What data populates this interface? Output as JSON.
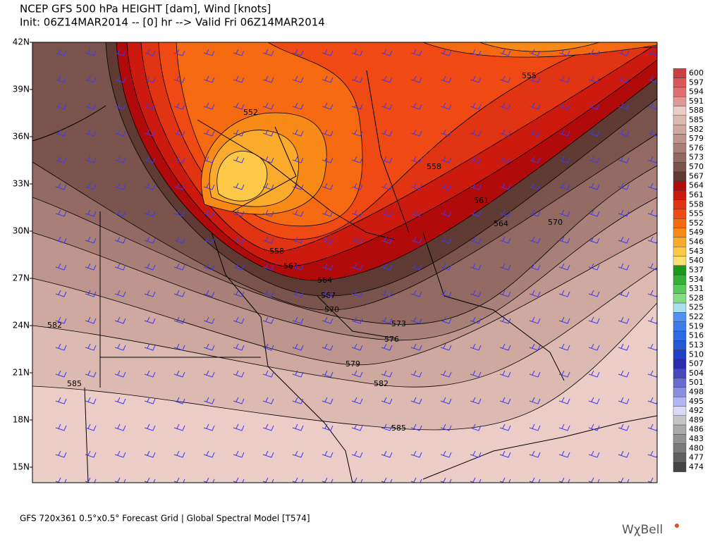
{
  "header": {
    "title": "NCEP GFS 500 hPa HEIGHT [dam], Wind [knots]",
    "subtitle": "Init: 06Z14MAR2014 -- [0] hr --> Valid Fri 06Z14MAR2014"
  },
  "map": {
    "lat_labels": [
      "42N",
      "39N",
      "36N",
      "33N",
      "30N",
      "27N",
      "24N",
      "21N",
      "18N",
      "15N"
    ],
    "contour_labels": [
      "552",
      "555",
      "558",
      "558",
      "561",
      "561",
      "564",
      "564",
      "567",
      "570",
      "570",
      "573",
      "576",
      "579",
      "582",
      "582",
      "585",
      "585"
    ]
  },
  "colorbar": {
    "levels": [
      600,
      597,
      594,
      591,
      588,
      585,
      582,
      579,
      576,
      573,
      570,
      567,
      564,
      561,
      558,
      555,
      552,
      549,
      546,
      543,
      540,
      537,
      534,
      531,
      528,
      525,
      522,
      519,
      516,
      513,
      510,
      507,
      504,
      501,
      498,
      495,
      492,
      489,
      486,
      483,
      480,
      477,
      474
    ],
    "colors": [
      "#c84040",
      "#d85858",
      "#e07070",
      "#e09898",
      "#ecccc6",
      "#dcbab2",
      "#cfa89f",
      "#bd958c",
      "#a98078",
      "#926a62",
      "#7a544c",
      "#5e3a32",
      "#b00a0a",
      "#cc1a0e",
      "#e03412",
      "#f04a14",
      "#f56a10",
      "#f88a18",
      "#fbab2c",
      "#fcc848",
      "#fde070",
      "#1a9a1a",
      "#34b034",
      "#58c858",
      "#84dc84",
      "#a8e0f0",
      "#5090f0",
      "#3c7ef0",
      "#2c6ae8",
      "#2458d8",
      "#2040c8",
      "#2c2cb0",
      "#4848c0",
      "#6a6ad0",
      "#8e8ee0",
      "#b4b4f0",
      "#d8d8f8",
      "#c4c4c4",
      "#aaaaaa",
      "#929292",
      "#7a7a7a",
      "#606060",
      "#444444"
    ]
  },
  "footer": {
    "text": "GFS 720x361 0.5°x0.5° Forecast Grid | Global Spectral Model [T574]",
    "logo": "WχBell"
  }
}
